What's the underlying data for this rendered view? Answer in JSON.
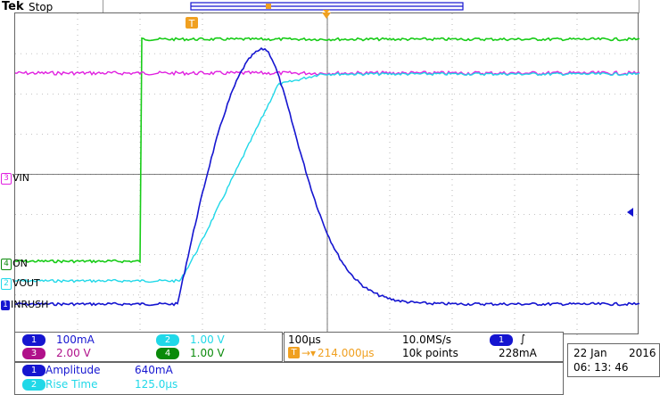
{
  "header": {
    "brand": "Tek",
    "status": "Stop",
    "trigger_marker": "T"
  },
  "channels": {
    "ch3": {
      "marker": "3",
      "label": "VIN"
    },
    "ch4": {
      "marker": "4",
      "label": "ON"
    },
    "ch2": {
      "marker": "2",
      "label": "VOUT"
    },
    "ch1": {
      "marker": "1",
      "label": "INRUSH"
    }
  },
  "scales": {
    "ch1": {
      "num": "1",
      "value": "100mA"
    },
    "ch2": {
      "num": "2",
      "value": "1.00 V"
    },
    "ch3": {
      "num": "3",
      "value": "2.00 V"
    },
    "ch4": {
      "num": "4",
      "value": "1.00 V"
    }
  },
  "timebase": {
    "per_div": "100µs",
    "sample_rate": "10.0MS/s",
    "trigger_pos": "214.000µs",
    "record": "10k points",
    "trigger_icon": "T",
    "trigger_arrow": "→▾"
  },
  "trigger": {
    "source": "1",
    "slope": "∫",
    "level": "228mA"
  },
  "measurements": [
    {
      "num": "1",
      "name": "Amplitude",
      "value": "640mA"
    },
    {
      "num": "2",
      "name": "Rise Time",
      "value": "125.0µs"
    }
  ],
  "date": {
    "day": "22 Jan",
    "year": "2016",
    "time": "06: 13: 46"
  },
  "colors": {
    "ch1": "#1515d0",
    "ch2": "#20d8e8",
    "ch3": "#e020e0",
    "ch4": "#18cc18",
    "ch4_dark": "#0a8a0a",
    "trigger": "#f0a020"
  }
}
